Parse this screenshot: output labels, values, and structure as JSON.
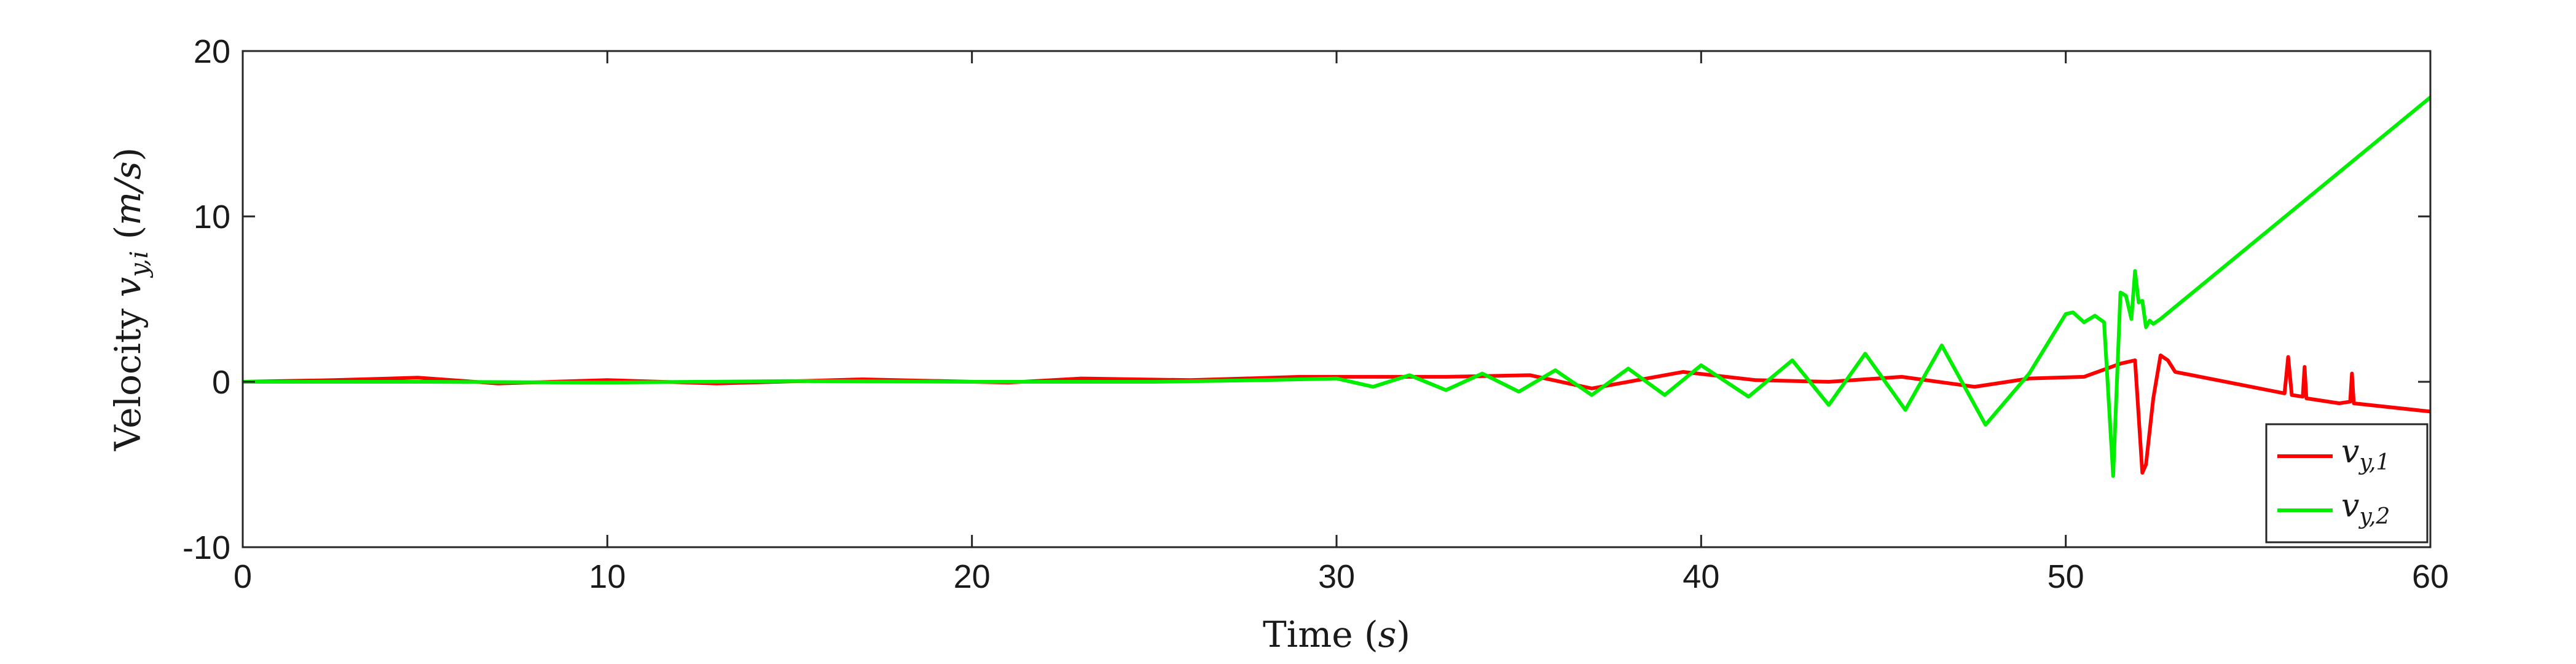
{
  "chart_data": {
    "type": "line",
    "title": "",
    "xlabel": "Time (s)",
    "ylabel": "Velocity v_{y,i} (m/s)",
    "xlim": [
      0,
      60
    ],
    "ylim": [
      -10,
      20
    ],
    "xticks": [
      0,
      10,
      20,
      30,
      40,
      50,
      60
    ],
    "yticks": [
      -10,
      0,
      10,
      20
    ],
    "xtick_labels": [
      "0",
      "10",
      "20",
      "30",
      "40",
      "50",
      "60"
    ],
    "ytick_labels": [
      "-10",
      "0",
      "10",
      "20"
    ],
    "grid": false,
    "legend_position": "bottom-right",
    "legend_labels": [
      "v_{y,1}",
      "v_{y,2}"
    ],
    "series": [
      {
        "name": "v_{y,1}",
        "color": "#ff0000",
        "x": [
          0,
          2.5,
          4.8,
          7,
          10,
          13,
          17,
          21,
          23,
          26,
          29,
          31,
          33,
          35.3,
          37,
          39.5,
          41.5,
          43.5,
          45.5,
          47.5,
          49,
          50.5,
          51.5,
          51.9,
          52.1,
          52.2,
          52.4,
          52.6,
          52.8,
          53,
          56,
          56.1,
          56.2,
          56.5,
          56.55,
          56.6,
          57.5,
          57.8,
          57.85,
          57.9,
          60
        ],
        "y": [
          0,
          0.1,
          0.25,
          -0.1,
          0.1,
          -0.1,
          0.15,
          -0.05,
          0.2,
          0.1,
          0.3,
          0.3,
          0.3,
          0.4,
          -0.4,
          0.6,
          0.1,
          0.0,
          0.3,
          -0.3,
          0.2,
          0.3,
          1.1,
          1.3,
          -5.5,
          -5.0,
          -1.0,
          1.6,
          1.3,
          0.6,
          -0.7,
          1.5,
          -0.8,
          -0.9,
          0.9,
          -1.0,
          -1.3,
          -1.2,
          0.5,
          -1.3,
          -1.8
        ]
      },
      {
        "name": "v_{y,2}",
        "color": "#00ee00",
        "x": [
          0,
          5,
          10,
          15,
          20,
          25,
          28,
          30,
          31,
          32,
          33,
          34,
          35,
          36,
          37,
          38,
          39,
          40,
          41.3,
          42.5,
          43.5,
          44.5,
          45.6,
          46.6,
          47.8,
          49,
          50,
          50.2,
          50.5,
          50.8,
          51.05,
          51.3,
          51.5,
          51.65,
          51.8,
          51.9,
          52,
          52.1,
          52.2,
          52.3,
          52.4,
          52.6,
          60
        ],
        "y": [
          0,
          0,
          -0.05,
          0.05,
          0,
          0,
          0.1,
          0.2,
          -0.3,
          0.4,
          -0.5,
          0.5,
          -0.6,
          0.7,
          -0.8,
          0.8,
          -0.8,
          1.0,
          -0.9,
          1.3,
          -1.4,
          1.7,
          -1.7,
          2.2,
          -2.6,
          0.5,
          4.1,
          4.2,
          3.6,
          4.0,
          3.6,
          -5.7,
          5.4,
          5.2,
          3.8,
          6.7,
          4.8,
          4.9,
          3.3,
          3.7,
          3.5,
          3.8,
          17.2
        ]
      }
    ]
  }
}
